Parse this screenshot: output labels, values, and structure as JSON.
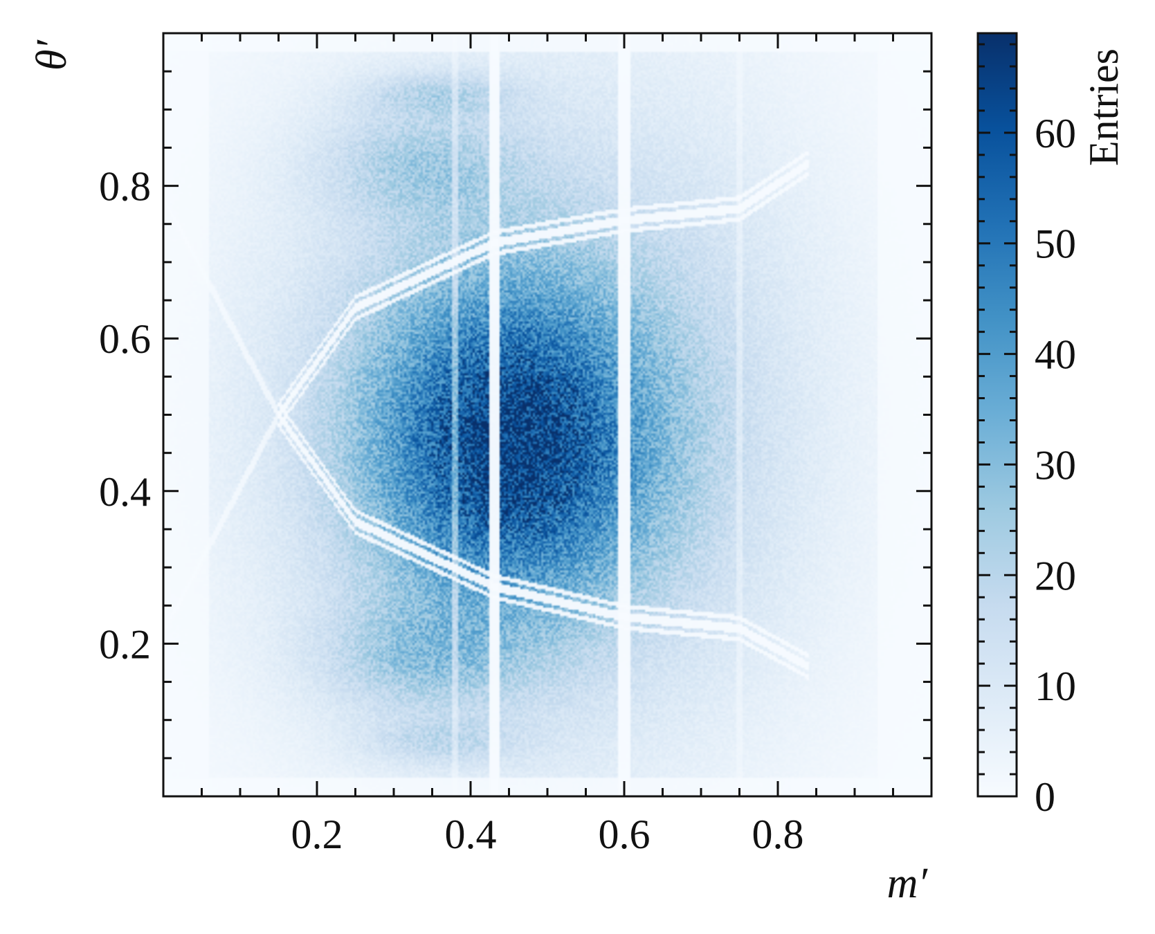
{
  "chart_data": {
    "type": "heatmap",
    "title": "",
    "xlabel": "m′",
    "ylabel": "θ′",
    "xlim": [
      0,
      1
    ],
    "ylim": [
      0,
      1
    ],
    "x_ticks": [
      0.2,
      0.4,
      0.6,
      0.8
    ],
    "x_tick_labels": [
      "0.2",
      "0.4",
      "0.6",
      "0.8"
    ],
    "y_ticks": [
      0.2,
      0.4,
      0.6,
      0.8
    ],
    "y_tick_labels": [
      "0.2",
      "0.4",
      "0.6",
      "0.8"
    ],
    "colormap": "Blues",
    "colorbar": {
      "label": "Entries",
      "range": [
        0,
        69
      ],
      "ticks": [
        0,
        10,
        20,
        30,
        40,
        50,
        60
      ],
      "tick_labels": [
        "0",
        "10",
        "20",
        "30",
        "40",
        "50",
        "60"
      ]
    },
    "peak_region": {
      "m_center": 0.45,
      "theta_center": 0.46,
      "peak_entries": 60
    },
    "empty_vertical_bands_m": [
      0.43,
      0.6
    ],
    "faint_vertical_bands_m": [
      0.38,
      0.75
    ],
    "empty_curves": [
      {
        "name": "upper branch",
        "points": [
          [
            0.15,
            0.5
          ],
          [
            0.25,
            0.64
          ],
          [
            0.43,
            0.725
          ],
          [
            0.6,
            0.755
          ],
          [
            0.75,
            0.77
          ],
          [
            0.84,
            0.83
          ]
        ]
      },
      {
        "name": "lower branch",
        "points": [
          [
            0.15,
            0.5
          ],
          [
            0.25,
            0.36
          ],
          [
            0.43,
            0.275
          ],
          [
            0.6,
            0.235
          ],
          [
            0.75,
            0.22
          ],
          [
            0.84,
            0.17
          ]
        ]
      }
    ],
    "grid": false,
    "legend": "none"
  }
}
